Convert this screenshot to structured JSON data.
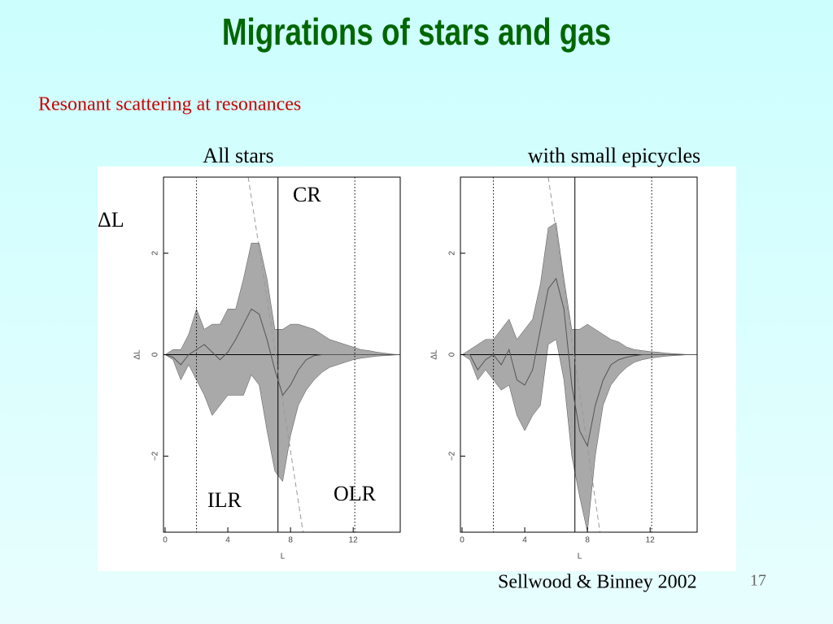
{
  "slide": {
    "title": "Migrations of stars and gas",
    "subtitle": "Resonant scattering at resonances",
    "citation": "Sellwood & Binney 2002",
    "slide_number": "17",
    "annotations": [
      "CR",
      "ΔL",
      "ILR",
      "OLR"
    ]
  },
  "chart_data": [
    {
      "type": "line",
      "title": "All stars",
      "x_label": "L",
      "y_label": "ΔL",
      "x": [
        0,
        0.5,
        1,
        1.5,
        2,
        2.5,
        3,
        3.5,
        4,
        4.5,
        5,
        5.5,
        6,
        6.5,
        7,
        7.5,
        8,
        8.5,
        9,
        9.5,
        10,
        10.5,
        11,
        11.5,
        12,
        12.5,
        13,
        13.5,
        14,
        14.5,
        15
      ],
      "series": [
        {
          "color": "#555555",
          "values": [
            0,
            -0.05,
            -0.2,
            0,
            0.1,
            0.2,
            0.05,
            -0.1,
            0.05,
            0.3,
            0.6,
            0.9,
            0.8,
            0.3,
            -0.3,
            -0.8,
            -0.6,
            -0.3,
            -0.1,
            -0.02,
            0,
            0,
            0,
            0,
            0,
            0,
            0,
            0,
            0,
            0,
            0
          ]
        }
      ],
      "band": {
        "color": "#a9a9a9",
        "upper": [
          0,
          0.1,
          0.1,
          0.4,
          0.9,
          0.5,
          0.6,
          0.6,
          0.9,
          0.9,
          1.5,
          2.2,
          2.2,
          1.5,
          0.5,
          0.5,
          0.6,
          0.6,
          0.55,
          0.5,
          0.4,
          0.3,
          0.25,
          0.2,
          0.15,
          0.1,
          0.08,
          0.05,
          0.03,
          0.01,
          0
        ],
        "lower": [
          0,
          -0.1,
          -0.5,
          -0.2,
          -0.5,
          -0.8,
          -1.2,
          -1.0,
          -0.8,
          -0.8,
          -0.8,
          -0.4,
          -0.6,
          -1.5,
          -2.3,
          -2.5,
          -1.6,
          -1.0,
          -0.7,
          -0.5,
          -0.35,
          -0.25,
          -0.2,
          -0.15,
          -0.1,
          -0.07,
          -0.05,
          -0.03,
          -0.02,
          -0.01,
          0
        ]
      },
      "vlines": [
        {
          "x": 2,
          "style": "dotted"
        },
        {
          "x": 7.2,
          "style": "solid"
        },
        {
          "x": 12.1,
          "style": "dotted"
        }
      ],
      "diagonal": {
        "x": [
          5.3,
          8.8
        ],
        "y": [
          3.5,
          -3.5
        ]
      },
      "xlim": [
        0,
        15
      ],
      "ylim": [
        -3.5,
        3.5
      ],
      "xticks": [
        0,
        4,
        8,
        12
      ],
      "yticks": [
        {
          "value": -2,
          "label": "−2"
        },
        0,
        2
      ]
    },
    {
      "type": "line",
      "title": "with small epicycles",
      "x_label": "L",
      "y_label": "ΔL",
      "x": [
        0,
        0.5,
        1,
        1.5,
        2,
        2.5,
        3,
        3.5,
        4,
        4.5,
        5,
        5.5,
        6,
        6.5,
        7,
        7.5,
        8,
        8.5,
        9,
        9.5,
        10,
        10.5,
        11,
        11.5,
        12,
        12.5,
        13,
        13.5,
        14,
        14.5,
        15
      ],
      "series": [
        {
          "color": "#555555",
          "values": [
            0,
            0,
            -0.3,
            -0.1,
            0,
            -0.2,
            0.1,
            -0.5,
            -0.6,
            -0.3,
            0.5,
            1.3,
            1.5,
            0.9,
            -0.6,
            -1.5,
            -1.8,
            -1.0,
            -0.5,
            -0.2,
            -0.1,
            -0.05,
            -0.02,
            0,
            0,
            0,
            0,
            0,
            0,
            0,
            0
          ]
        }
      ],
      "band": {
        "color": "#a9a9a9",
        "upper": [
          0,
          0.1,
          0.2,
          0.3,
          0.3,
          0.5,
          0.7,
          0.3,
          0.5,
          0.7,
          1.4,
          2.5,
          2.6,
          1.5,
          0.5,
          0.5,
          0.6,
          0.5,
          0.4,
          0.3,
          0.25,
          0.15,
          0.1,
          0.08,
          0.06,
          0.05,
          0.03,
          0.02,
          0.01,
          0,
          0
        ],
        "lower": [
          0,
          -0.1,
          -0.5,
          -0.3,
          -0.5,
          -0.7,
          -0.6,
          -1.2,
          -1.5,
          -1.2,
          -1.0,
          0.2,
          0.3,
          -0.5,
          -2.0,
          -2.8,
          -3.5,
          -2.0,
          -1.0,
          -0.6,
          -0.4,
          -0.25,
          -0.15,
          -0.1,
          -0.07,
          -0.05,
          -0.03,
          -0.02,
          -0.01,
          0,
          0
        ]
      },
      "vlines": [
        {
          "x": 2,
          "style": "dotted"
        },
        {
          "x": 7.2,
          "style": "solid"
        },
        {
          "x": 12.1,
          "style": "dotted"
        }
      ],
      "diagonal": {
        "x": [
          5.5,
          8.8
        ],
        "y": [
          3.5,
          -3.5
        ]
      },
      "xlim": [
        0,
        15
      ],
      "ylim": [
        -3.5,
        3.5
      ],
      "xticks": [
        0,
        4,
        8,
        12
      ],
      "yticks": [
        {
          "value": -2,
          "label": "−2"
        },
        0,
        2
      ]
    }
  ]
}
